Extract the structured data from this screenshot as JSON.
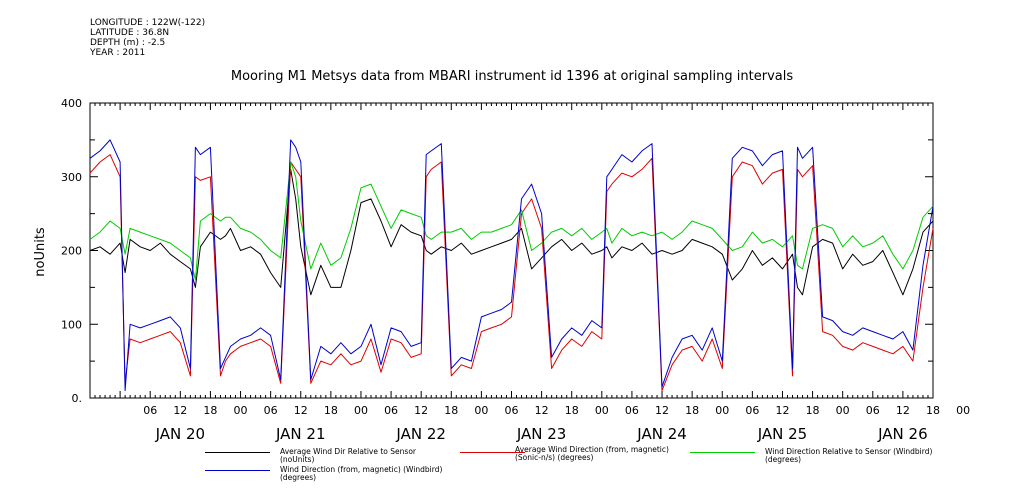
{
  "meta": {
    "longitude": "LONGITUDE : 122W(-122)",
    "latitude": "LATITUDE : 36.8N",
    "depth": "DEPTH (m) : -2.5",
    "year": "YEAR : 2011"
  },
  "chart_data": {
    "type": "line",
    "title": "Mooring M1 Metsys data from MBARI instrument id 1396 at original sampling intervals",
    "xlabel": "",
    "ylabel": "noUnits",
    "ylim": [
      0,
      400
    ],
    "yticks": [
      "0.",
      "100",
      "200",
      "300",
      "400"
    ],
    "xlim_hours": [
      0,
      168
    ],
    "x_hour_ticks": [
      "06",
      "12",
      "18",
      "00",
      "06",
      "12",
      "18",
      "00",
      "06",
      "12",
      "18",
      "00",
      "06",
      "12",
      "18",
      "00",
      "06",
      "12",
      "18",
      "00",
      "06",
      "12",
      "18",
      "00",
      "06",
      "12",
      "18",
      "00"
    ],
    "day_labels": [
      "JAN 20",
      "JAN 21",
      "JAN 22",
      "JAN 23",
      "JAN 24",
      "JAN 25",
      "JAN 26"
    ],
    "x_unit": "hours since 2011-01-19 18:00",
    "grid": false,
    "legend_position": "bottom",
    "series": [
      {
        "name": "Average Wind Dir Relative to Sensor (noUnits)",
        "color": "#000000",
        "x": [
          0,
          2,
          4,
          6,
          7,
          8,
          10,
          12,
          14,
          16,
          18,
          20,
          21,
          22,
          24,
          26,
          27,
          28,
          30,
          32,
          34,
          36,
          38,
          40,
          41,
          42,
          44,
          46,
          48,
          50,
          52,
          54,
          56,
          58,
          60,
          62,
          64,
          66,
          67,
          68,
          70,
          72,
          74,
          76,
          78,
          80,
          82,
          84,
          86,
          88,
          90,
          92,
          94,
          96,
          98,
          100,
          102,
          103,
          104,
          106,
          108,
          110,
          112,
          114,
          116,
          118,
          120,
          122,
          124,
          126,
          128,
          130,
          132,
          134,
          136,
          138,
          140,
          141,
          142,
          144,
          146,
          148,
          150,
          152,
          154,
          156,
          158,
          160,
          162,
          164,
          166,
          168
        ],
        "values": [
          200,
          205,
          195,
          210,
          170,
          215,
          205,
          200,
          210,
          195,
          185,
          175,
          150,
          205,
          225,
          215,
          220,
          230,
          200,
          205,
          195,
          170,
          150,
          310,
          270,
          205,
          140,
          180,
          150,
          150,
          200,
          265,
          270,
          240,
          205,
          235,
          225,
          220,
          200,
          195,
          205,
          200,
          210,
          195,
          200,
          205,
          210,
          215,
          230,
          175,
          190,
          205,
          215,
          200,
          210,
          195,
          200,
          205,
          190,
          205,
          200,
          210,
          195,
          200,
          195,
          200,
          215,
          210,
          205,
          195,
          160,
          175,
          200,
          180,
          190,
          175,
          195,
          150,
          140,
          205,
          215,
          210,
          175,
          195,
          180,
          185,
          200,
          170,
          140,
          175,
          225,
          240
        ]
      },
      {
        "name": "Average Wind Direction (from, magnetic) (Sonic-n/s) (degrees)",
        "color": "#dd0000",
        "x": [
          0,
          2,
          4,
          6,
          7,
          8,
          10,
          12,
          14,
          16,
          18,
          20,
          21,
          22,
          24,
          26,
          27,
          28,
          30,
          32,
          34,
          36,
          38,
          40,
          41,
          42,
          44,
          46,
          48,
          50,
          52,
          54,
          56,
          58,
          60,
          62,
          64,
          66,
          67,
          68,
          70,
          72,
          74,
          76,
          78,
          80,
          82,
          84,
          86,
          88,
          90,
          92,
          94,
          96,
          98,
          100,
          102,
          103,
          104,
          106,
          108,
          110,
          112,
          114,
          116,
          118,
          120,
          122,
          124,
          126,
          128,
          130,
          132,
          134,
          136,
          138,
          140,
          141,
          142,
          144,
          146,
          148,
          150,
          152,
          154,
          156,
          158,
          160,
          162,
          164,
          166,
          168
        ],
        "values": [
          305,
          320,
          330,
          300,
          20,
          80,
          75,
          80,
          85,
          90,
          75,
          30,
          300,
          295,
          300,
          30,
          50,
          60,
          70,
          75,
          80,
          70,
          20,
          320,
          310,
          300,
          20,
          50,
          45,
          60,
          45,
          50,
          80,
          35,
          80,
          75,
          55,
          60,
          300,
          310,
          320,
          30,
          45,
          40,
          90,
          95,
          100,
          110,
          250,
          270,
          230,
          40,
          65,
          80,
          70,
          90,
          80,
          280,
          290,
          305,
          300,
          310,
          325,
          10,
          45,
          65,
          70,
          50,
          80,
          40,
          300,
          320,
          315,
          290,
          305,
          310,
          30,
          310,
          300,
          315,
          90,
          85,
          70,
          65,
          75,
          70,
          65,
          60,
          70,
          50,
          150,
          230
        ]
      },
      {
        "name": "Wind Direction Relative to Sensor (Windbird) (degrees)",
        "color": "#00cc00",
        "x": [
          0,
          2,
          4,
          6,
          7,
          8,
          10,
          12,
          14,
          16,
          18,
          20,
          21,
          22,
          24,
          26,
          27,
          28,
          30,
          32,
          34,
          36,
          38,
          40,
          41,
          42,
          44,
          46,
          48,
          50,
          52,
          54,
          56,
          58,
          60,
          62,
          64,
          66,
          67,
          68,
          70,
          72,
          74,
          76,
          78,
          80,
          82,
          84,
          86,
          88,
          90,
          92,
          94,
          96,
          98,
          100,
          102,
          103,
          104,
          106,
          108,
          110,
          112,
          114,
          116,
          118,
          120,
          122,
          124,
          126,
          128,
          130,
          132,
          134,
          136,
          138,
          140,
          141,
          142,
          144,
          146,
          148,
          150,
          152,
          154,
          156,
          158,
          160,
          162,
          164,
          166,
          168
        ],
        "values": [
          215,
          225,
          240,
          230,
          195,
          230,
          225,
          220,
          215,
          210,
          200,
          190,
          160,
          240,
          250,
          240,
          245,
          245,
          230,
          225,
          215,
          200,
          190,
          320,
          300,
          240,
          175,
          210,
          180,
          190,
          230,
          285,
          290,
          260,
          230,
          255,
          250,
          245,
          220,
          215,
          225,
          225,
          230,
          215,
          225,
          225,
          230,
          235,
          255,
          200,
          210,
          225,
          230,
          220,
          230,
          215,
          225,
          230,
          210,
          230,
          220,
          225,
          220,
          225,
          215,
          225,
          240,
          235,
          230,
          215,
          200,
          205,
          225,
          210,
          215,
          205,
          220,
          180,
          175,
          230,
          235,
          230,
          205,
          220,
          205,
          210,
          220,
          195,
          175,
          200,
          245,
          260
        ]
      },
      {
        "name": "Wind Direction (from, magnetic) (Windbird) (degrees)",
        "color": "#0000cc",
        "x": [
          0,
          2,
          4,
          6,
          7,
          8,
          10,
          12,
          14,
          16,
          18,
          20,
          21,
          22,
          24,
          26,
          27,
          28,
          30,
          32,
          34,
          36,
          38,
          40,
          41,
          42,
          44,
          46,
          48,
          50,
          52,
          54,
          56,
          58,
          60,
          62,
          64,
          66,
          67,
          68,
          70,
          72,
          74,
          76,
          78,
          80,
          82,
          84,
          86,
          88,
          90,
          92,
          94,
          96,
          98,
          100,
          102,
          103,
          104,
          106,
          108,
          110,
          112,
          114,
          116,
          118,
          120,
          122,
          124,
          126,
          128,
          130,
          132,
          134,
          136,
          138,
          140,
          141,
          142,
          144,
          146,
          148,
          150,
          152,
          154,
          156,
          158,
          160,
          162,
          164,
          166,
          168
        ],
        "values": [
          325,
          335,
          350,
          320,
          10,
          100,
          95,
          100,
          105,
          110,
          95,
          40,
          340,
          330,
          340,
          40,
          55,
          70,
          80,
          85,
          95,
          85,
          25,
          350,
          340,
          320,
          25,
          70,
          60,
          75,
          60,
          70,
          100,
          45,
          95,
          90,
          70,
          75,
          330,
          335,
          345,
          40,
          55,
          50,
          110,
          115,
          120,
          130,
          270,
          290,
          250,
          55,
          80,
          95,
          85,
          105,
          95,
          300,
          310,
          330,
          320,
          335,
          345,
          15,
          55,
          80,
          85,
          65,
          95,
          50,
          325,
          340,
          335,
          315,
          330,
          335,
          40,
          340,
          325,
          340,
          110,
          105,
          90,
          85,
          95,
          90,
          85,
          80,
          90,
          65,
          180,
          260
        ]
      }
    ]
  }
}
